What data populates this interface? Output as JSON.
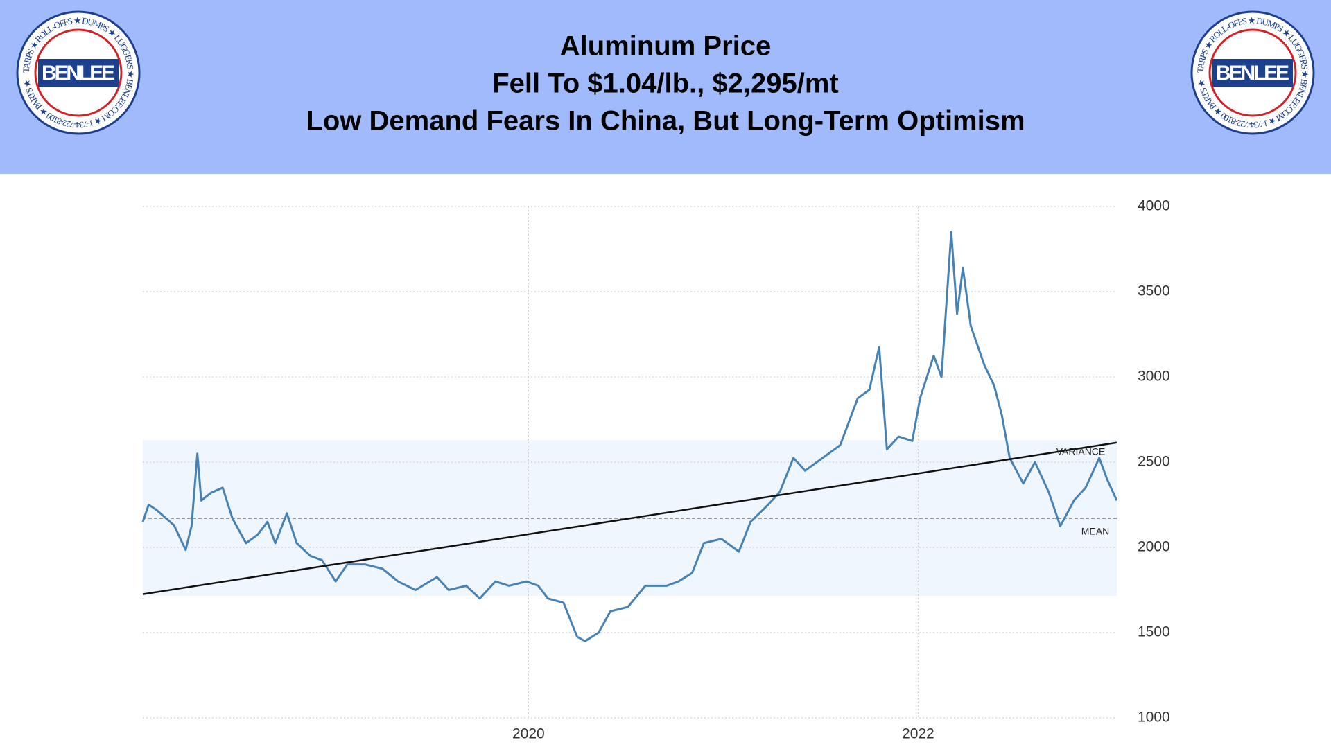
{
  "header": {
    "title_lines": [
      "Aluminum Price",
      "Fell To $1.04/lb., $2,295/mt",
      "Low Demand Fears In China, But Long-Term Optimism"
    ],
    "logo": {
      "name": "BENLEE",
      "ring_text": "TARPS ★ ROLL-OFFS ★ DUMPS ★ LUGGERS ★ BENLEE.COM ★ 1-734-722-8100 ★ PARTS ★"
    }
  },
  "chart_data": {
    "type": "line",
    "color": "#4682b4",
    "x": [
      2018.02,
      2018.05,
      2018.09,
      2018.13,
      2018.18,
      2018.24,
      2018.27,
      2018.3,
      2018.32,
      2018.37,
      2018.43,
      2018.48,
      2018.55,
      2018.61,
      2018.66,
      2018.7,
      2018.76,
      2018.81,
      2018.88,
      2018.94,
      2019.01,
      2019.07,
      2019.16,
      2019.25,
      2019.33,
      2019.42,
      2019.53,
      2019.59,
      2019.68,
      2019.75,
      2019.83,
      2019.9,
      2019.99,
      2020.05,
      2020.1,
      2020.18,
      2020.25,
      2020.29,
      2020.36,
      2020.42,
      2020.51,
      2020.6,
      2020.71,
      2020.77,
      2020.84,
      2020.9,
      2020.99,
      2021.08,
      2021.14,
      2021.23,
      2021.29,
      2021.36,
      2021.42,
      2021.51,
      2021.6,
      2021.69,
      2021.75,
      2021.8,
      2021.84,
      2021.9,
      2021.97,
      2022.01,
      2022.08,
      2022.12,
      2022.17,
      2022.2,
      2022.23,
      2022.27,
      2022.34,
      2022.39,
      2022.43,
      2022.47,
      2022.54,
      2022.6,
      2022.67,
      2022.73,
      2022.8,
      2022.86,
      2022.93,
      2022.97,
      2023.02
    ],
    "values": [
      2150,
      2250,
      2220,
      2180,
      2130,
      1985,
      2125,
      2550,
      2275,
      2320,
      2350,
      2170,
      2025,
      2075,
      2150,
      2025,
      2200,
      2025,
      1950,
      1925,
      1800,
      1900,
      1900,
      1875,
      1800,
      1750,
      1825,
      1750,
      1775,
      1700,
      1800,
      1775,
      1800,
      1775,
      1700,
      1675,
      1475,
      1450,
      1500,
      1625,
      1650,
      1775,
      1775,
      1800,
      1850,
      2025,
      2050,
      1975,
      2150,
      2250,
      2325,
      2525,
      2450,
      2525,
      2600,
      2875,
      2925,
      3175,
      2575,
      2650,
      2625,
      2875,
      3125,
      3000,
      3850,
      3370,
      3640,
      3300,
      3070,
      2950,
      2775,
      2525,
      2375,
      2500,
      2325,
      2125,
      2275,
      2350,
      2525,
      2400,
      2275
    ],
    "xlim": [
      2018.02,
      2023.02
    ],
    "xticks": [
      2020,
      2022
    ],
    "ylim": [
      1000,
      4000
    ],
    "yticks": [
      1000,
      1500,
      2000,
      2500,
      3000,
      3500,
      4000
    ],
    "grid": true,
    "variance_band": [
      1715,
      2630
    ],
    "mean": 2170,
    "trend_line": [
      1725,
      2615
    ],
    "variance_label": "VARIANCE",
    "mean_label": "MEAN"
  }
}
